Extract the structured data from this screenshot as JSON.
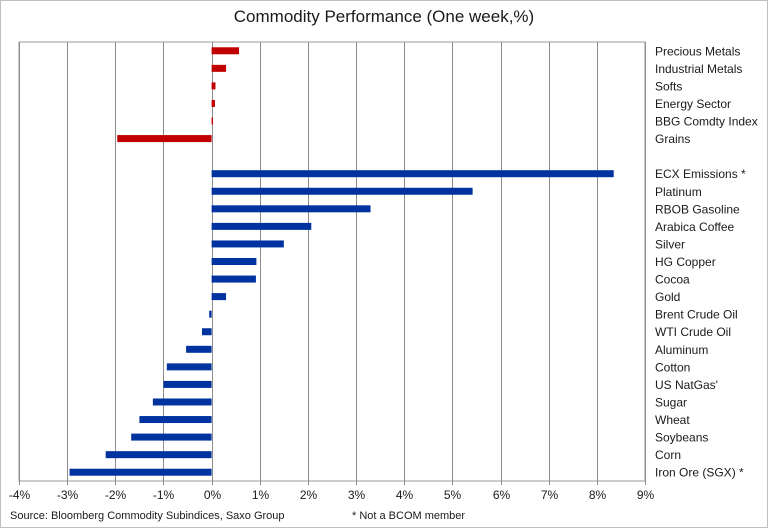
{
  "chart_data": {
    "type": "bar",
    "orientation": "horizontal",
    "title": "Commodity Performance (One week,%)",
    "x_ticks": [
      "-4%",
      "-3%",
      "-2%",
      "-1%",
      "0%",
      "1%",
      "2%",
      "3%",
      "4%",
      "5%",
      "6%",
      "7%",
      "8%",
      "9%"
    ],
    "xlim": [
      -4,
      9
    ],
    "grid": "vertical",
    "legend": "none",
    "groups": [
      {
        "color": "#c00000",
        "categories": [
          "Precious Metals",
          "Industrial Metals",
          "Softs",
          "Energy Sector",
          "BBG Comdty Index",
          "Grains"
        ],
        "values": [
          0.57,
          0.3,
          0.08,
          0.07,
          0.03,
          -1.96
        ]
      },
      {
        "color": "#0033a0",
        "categories": [
          "ECX Emissions *",
          "Platinum",
          "RBOB Gasoline",
          "Arabica Coffee",
          "Silver",
          "HG Copper",
          "Cocoa",
          "Gold",
          "Brent Crude Oil",
          "WTI Crude Oil",
          "Aluminum",
          "Cotton",
          "US NatGas'",
          "Sugar",
          "Wheat",
          "Soybeans",
          "Corn",
          "Iron Ore (SGX) *"
        ],
        "values": [
          8.35,
          5.42,
          3.3,
          2.07,
          1.5,
          0.93,
          0.92,
          0.3,
          -0.05,
          -0.2,
          -0.53,
          -0.93,
          -1.0,
          -1.22,
          -1.5,
          -1.67,
          -2.2,
          -2.95
        ]
      }
    ]
  },
  "footer": {
    "source": "Source: Bloomberg Commodity Subindices, Saxo Group",
    "note": "* Not a BCOM member"
  }
}
